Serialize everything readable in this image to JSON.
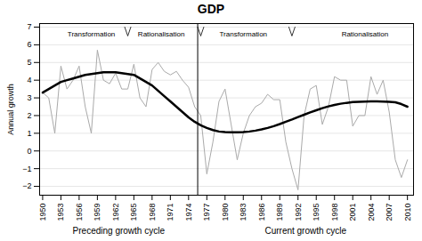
{
  "chart_data": {
    "type": "line",
    "title": "GDP",
    "ylabel": "Annual growth",
    "x_section_labels": [
      "Preceding growth cycle",
      "Current growth cycle"
    ],
    "x": [
      1950,
      1951,
      1952,
      1953,
      1954,
      1955,
      1956,
      1957,
      1958,
      1959,
      1960,
      1961,
      1962,
      1963,
      1964,
      1965,
      1966,
      1967,
      1968,
      1969,
      1970,
      1971,
      1972,
      1973,
      1974,
      1975,
      1976,
      1977,
      1978,
      1979,
      1980,
      1981,
      1982,
      1983,
      1984,
      1985,
      1986,
      1987,
      1988,
      1989,
      1990,
      1991,
      1992,
      1993,
      1994,
      1995,
      1996,
      1997,
      1998,
      1999,
      2000,
      2001,
      2002,
      2003,
      2004,
      2005,
      2006,
      2007,
      2008,
      2009,
      2010
    ],
    "series": [
      {
        "color": "#aaaaaa",
        "values": [
          3.3,
          3.0,
          1.0,
          4.8,
          3.5,
          4.0,
          4.8,
          2.5,
          1.0,
          5.7,
          4.0,
          3.8,
          4.4,
          3.5,
          3.5,
          4.9,
          3.0,
          2.5,
          4.6,
          5.0,
          4.5,
          4.3,
          4.5,
          4.0,
          3.6,
          2.5,
          2.0,
          -1.3,
          0.5,
          2.8,
          3.5,
          1.5,
          -0.5,
          1.0,
          2.0,
          2.5,
          2.7,
          3.2,
          2.9,
          2.9,
          0.5,
          -1.0,
          -2.2,
          2.0,
          3.5,
          3.7,
          1.5,
          2.5,
          4.2,
          4.0,
          4.0,
          1.4,
          2.0,
          2.0,
          4.2,
          3.2,
          4.0,
          2.2,
          -0.5,
          -1.5,
          -0.5
        ]
      },
      {
        "color": "#000000",
        "values": [
          3.3,
          3.5,
          3.7,
          3.9,
          4.0,
          4.1,
          4.2,
          4.3,
          4.35,
          4.4,
          4.45,
          4.45,
          4.45,
          4.4,
          4.35,
          4.3,
          4.1,
          3.9,
          3.7,
          3.4,
          3.1,
          2.8,
          2.5,
          2.2,
          1.9,
          1.65,
          1.45,
          1.3,
          1.18,
          1.1,
          1.07,
          1.06,
          1.06,
          1.07,
          1.1,
          1.15,
          1.22,
          1.3,
          1.4,
          1.52,
          1.65,
          1.78,
          1.92,
          2.05,
          2.18,
          2.3,
          2.42,
          2.52,
          2.6,
          2.67,
          2.72,
          2.76,
          2.78,
          2.79,
          2.8,
          2.8,
          2.79,
          2.78,
          2.75,
          2.65,
          2.5
        ]
      }
    ],
    "xlim": [
      1949.5,
      2011
    ],
    "xticks": [
      1950,
      1953,
      1956,
      1959,
      1962,
      1965,
      1968,
      1971,
      1974,
      1977,
      1980,
      1983,
      1986,
      1989,
      1992,
      1995,
      1998,
      2001,
      2004,
      2007,
      2010
    ],
    "ylim": [
      -2.5,
      7.2
    ],
    "yticks": [
      -2,
      -1,
      0,
      1,
      2,
      3,
      4,
      5,
      6,
      7
    ],
    "grid": "y",
    "divider_x": 1975.5,
    "phase_dividers_x": [
      1963.5,
      1975.5,
      1990.5
    ],
    "phase_dividers_y": [
      7.0,
      6.5
    ],
    "annotations": [
      {
        "text": "Transformation",
        "x": 1958,
        "y": 6.75
      },
      {
        "text": "Rationalisation",
        "x": 1969.5,
        "y": 6.75
      },
      {
        "text": "Transformation",
        "x": 1983,
        "y": 6.75
      },
      {
        "text": "Rationalisation",
        "x": 2003,
        "y": 6.75
      }
    ]
  }
}
